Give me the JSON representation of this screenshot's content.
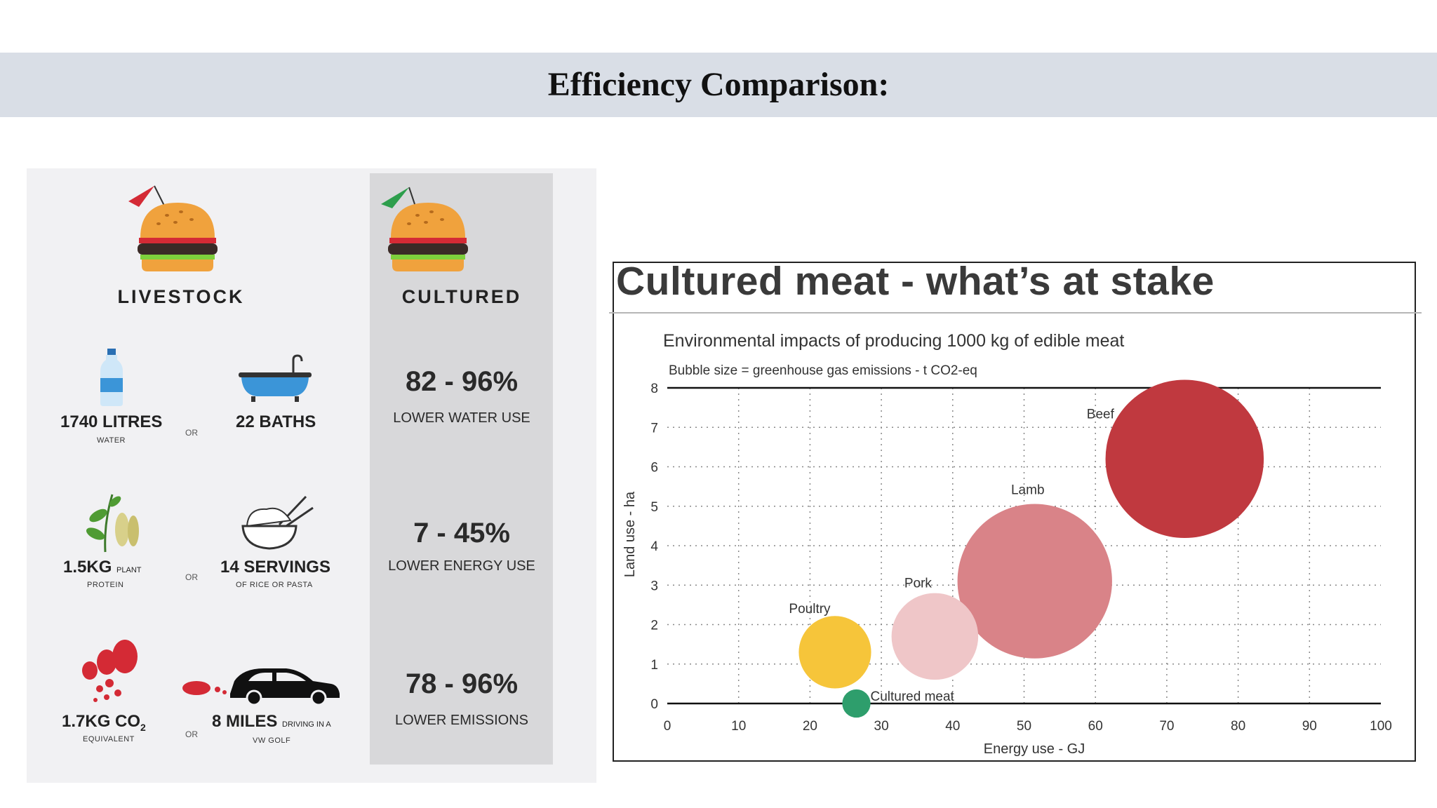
{
  "slide": {
    "title": "Efficiency Comparison:"
  },
  "infographic": {
    "livestock_header": "LIVESTOCK",
    "cultured_header": "CULTURED",
    "or_label": "OR",
    "rows": [
      {
        "stat1_value": "1740 LITRES",
        "stat1_caption": "WATER",
        "stat2_value": "22 BATHS",
        "stat2_caption": "",
        "cultured_value": "82 - 96%",
        "cultured_label": "LOWER WATER USE"
      },
      {
        "stat1_value": "1.5KG",
        "stat1_suffix": "PLANT",
        "stat1_caption": "PROTEIN",
        "stat2_value": "14 SERVINGS",
        "stat2_caption": "OF RICE OR PASTA",
        "cultured_value": "7 - 45%",
        "cultured_label": "LOWER ENERGY USE"
      },
      {
        "stat1_value": "1.7KG CO",
        "stat1_sub": "2",
        "stat1_caption": "EQUIVALENT",
        "stat2_value": "8 MILES",
        "stat2_suffix": "DRIVING IN A",
        "stat2_caption": "VW GOLF",
        "cultured_value": "78 - 96%",
        "cultured_label": "LOWER EMISSIONS"
      }
    ],
    "icons": {
      "livestock_flag_color": "#d42a35",
      "cultured_flag_color": "#2d9e4c",
      "bun_color": "#f0a23d",
      "patty_color": "#3a2a26",
      "lettuce_color": "#7ed03c",
      "water_color": "#3b95d8",
      "co2_color": "#d42a35"
    }
  },
  "chart_data": {
    "type": "bubble",
    "title": "Cultured meat - what’s at stake",
    "subtitle": "Environmental impacts of producing 1000 kg of edible meat",
    "note": "Bubble size = greenhouse gas emissions - t CO2-eq",
    "xlabel": "Energy use - GJ",
    "ylabel": "Land use - ha",
    "xlim": [
      0,
      100
    ],
    "ylim": [
      0,
      8
    ],
    "xticks": [
      "0",
      "10",
      "20",
      "30",
      "40",
      "50",
      "60",
      "70",
      "80",
      "90",
      "100"
    ],
    "yticks": [
      "0",
      "1",
      "2",
      "3",
      "4",
      "5",
      "6",
      "7",
      "8"
    ],
    "grid": true,
    "series": [
      {
        "name": "Poultry",
        "x": 23.5,
        "y": 1.3,
        "size": 2.3,
        "color": "#f6c53a"
      },
      {
        "name": "Pork",
        "x": 37.5,
        "y": 1.7,
        "size": 3.3,
        "color": "#efc6c8"
      },
      {
        "name": "Lamb",
        "x": 51.5,
        "y": 3.1,
        "size": 10.5,
        "color": "#d98388"
      },
      {
        "name": "Beef",
        "x": 72.5,
        "y": 6.2,
        "size": 11.0,
        "color": "#c0393f"
      },
      {
        "name": "Cultured meat",
        "x": 26.5,
        "y": 0.0,
        "size": 0.35,
        "color": "#2e9e6c"
      }
    ]
  }
}
